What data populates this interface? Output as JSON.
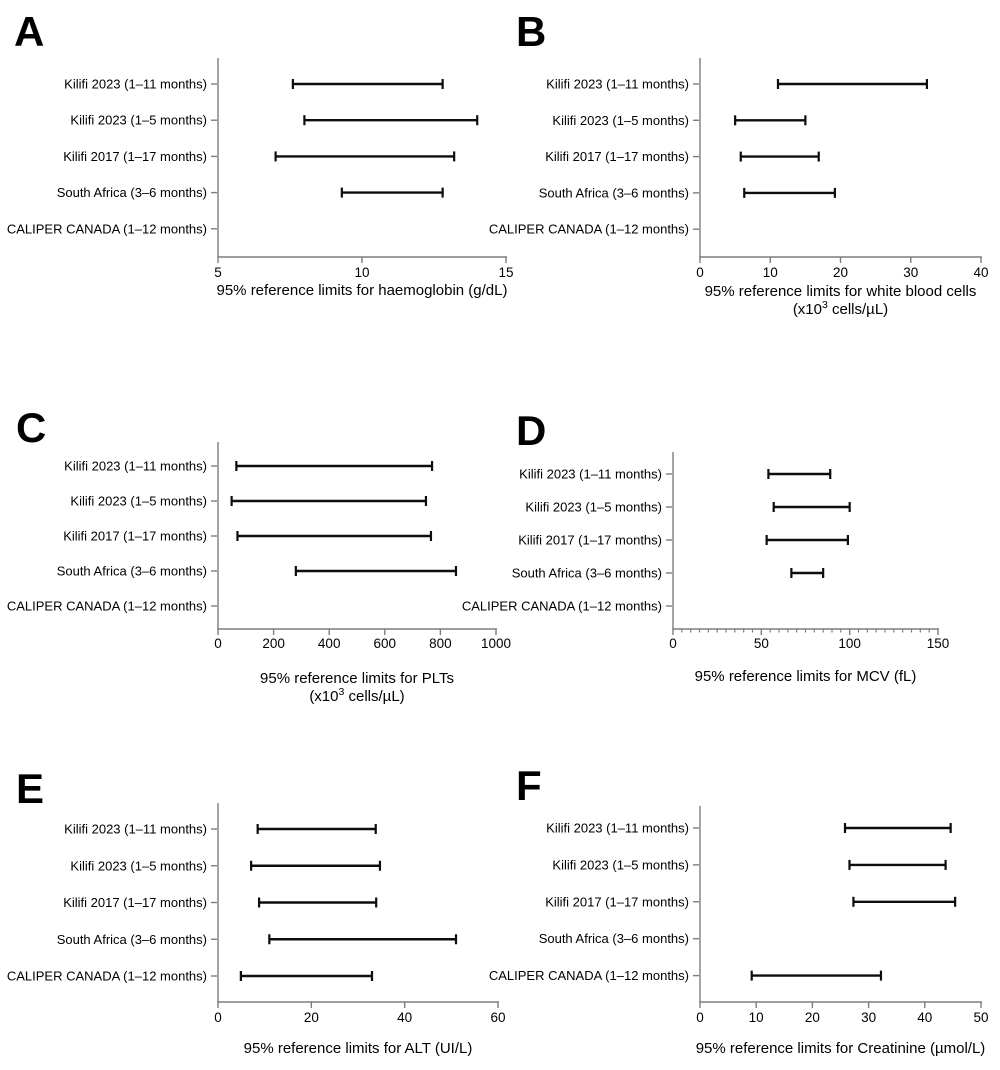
{
  "figure": {
    "background": "#ffffff",
    "axis_color": "#7d7d7d",
    "bar_color": "#0d0d0d",
    "text_color": "#000000"
  },
  "categories": [
    "Kilifi 2023 (1–11 months)",
    "Kilifi 2023 (1–5 months)",
    "Kilifi 2017 (1–17 months)",
    "South Africa (3–6 months)",
    "CALIPER CANADA (1–12 months)"
  ],
  "chart_data": [
    {
      "panel": "A",
      "type": "bar",
      "subtype": "horizontal_interval",
      "title_lines": [
        "95% reference limits for haemoglobin (g/dL)"
      ],
      "xlim": [
        5,
        15
      ],
      "xticks": [
        5,
        10,
        15
      ],
      "minor_tick_step": null,
      "categories": [
        "Kilifi 2023 (1–11 months)",
        "Kilifi 2023 (1–5 months)",
        "Kilifi 2017 (1–17 months)",
        "South Africa (3–6 months)",
        "CALIPER CANADA (1–12 months)"
      ],
      "ranges": [
        [
          7.6,
          12.8
        ],
        [
          8.0,
          14.0
        ],
        [
          7.0,
          13.2
        ],
        [
          9.3,
          12.8
        ],
        null
      ]
    },
    {
      "panel": "B",
      "type": "bar",
      "subtype": "horizontal_interval",
      "title_lines": [
        "95% reference limits for white blood cells",
        "(x10^{3} cells/µL)"
      ],
      "xlim": [
        0,
        40
      ],
      "xticks": [
        0,
        10,
        20,
        30,
        40
      ],
      "minor_tick_step": null,
      "categories": [
        "Kilifi 2023 (1–11 months)",
        "Kilifi 2023 (1–5 months)",
        "Kilifi 2017 (1–17 months)",
        "South Africa (3–6 months)",
        "CALIPER CANADA (1–12 months)"
      ],
      "ranges": [
        [
          11.1,
          32.3
        ],
        [
          5.0,
          15.0
        ],
        [
          5.8,
          16.9
        ],
        [
          6.3,
          19.2
        ],
        null
      ]
    },
    {
      "panel": "C",
      "type": "bar",
      "subtype": "horizontal_interval",
      "title_lines": [
        "95% reference limits for PLTs",
        "(x10^{3} cells/µL)"
      ],
      "xlim": [
        0,
        1000
      ],
      "xticks": [
        0,
        200,
        400,
        600,
        800,
        1000
      ],
      "minor_tick_step": null,
      "categories": [
        "Kilifi 2023 (1–11 months)",
        "Kilifi 2023 (1–5 months)",
        "Kilifi 2017 (1–17 months)",
        "South Africa (3–6 months)",
        "CALIPER CANADA (1–12 months)"
      ],
      "ranges": [
        [
          66,
          770
        ],
        [
          49,
          748
        ],
        [
          70,
          766
        ],
        [
          280,
          856
        ],
        null
      ]
    },
    {
      "panel": "D",
      "type": "bar",
      "subtype": "horizontal_interval",
      "title_lines": [
        "95% reference limits for MCV (fL)"
      ],
      "xlim": [
        0,
        150
      ],
      "xticks": [
        0,
        50,
        100,
        150
      ],
      "minor_tick_step": 5,
      "categories": [
        "Kilifi 2023 (1–11 months)",
        "Kilifi 2023 (1–5 months)",
        "Kilifi 2017 (1–17 months)",
        "South Africa (3–6 months)",
        "CALIPER CANADA (1–12 months)"
      ],
      "ranges": [
        [
          54,
          89
        ],
        [
          57,
          100
        ],
        [
          53,
          99
        ],
        [
          67,
          85
        ],
        null
      ]
    },
    {
      "panel": "E",
      "type": "bar",
      "subtype": "horizontal_interval",
      "title_lines": [
        "95% reference limits for ALT (UI/L)"
      ],
      "xlim": [
        0,
        60
      ],
      "xticks": [
        0,
        20,
        40,
        60
      ],
      "minor_tick_step": null,
      "categories": [
        "Kilifi 2023 (1–11 months)",
        "Kilifi 2023 (1–5 months)",
        "Kilifi 2017 (1–17 months)",
        "South Africa (3–6 months)",
        "CALIPER CANADA (1–12 months)"
      ],
      "ranges": [
        [
          8.5,
          33.8
        ],
        [
          7.1,
          34.7
        ],
        [
          8.8,
          33.9
        ],
        [
          11.0,
          51.0
        ],
        [
          4.9,
          33.0
        ]
      ]
    },
    {
      "panel": "F",
      "type": "bar",
      "subtype": "horizontal_interval",
      "title_lines": [
        "95% reference limits for Creatinine (µmol/L)"
      ],
      "xlim": [
        0,
        50
      ],
      "xticks": [
        0,
        10,
        20,
        30,
        40,
        50
      ],
      "minor_tick_step": null,
      "categories": [
        "Kilifi 2023 (1–11 months)",
        "Kilifi 2023 (1–5 months)",
        "Kilifi 2017 (1–17 months)",
        "South Africa (3–6 months)",
        "CALIPER CANADA (1–12 months)"
      ],
      "ranges": [
        [
          25.8,
          44.6
        ],
        [
          26.6,
          43.7
        ],
        [
          27.3,
          45.4
        ],
        null,
        [
          9.2,
          32.2
        ]
      ]
    }
  ]
}
